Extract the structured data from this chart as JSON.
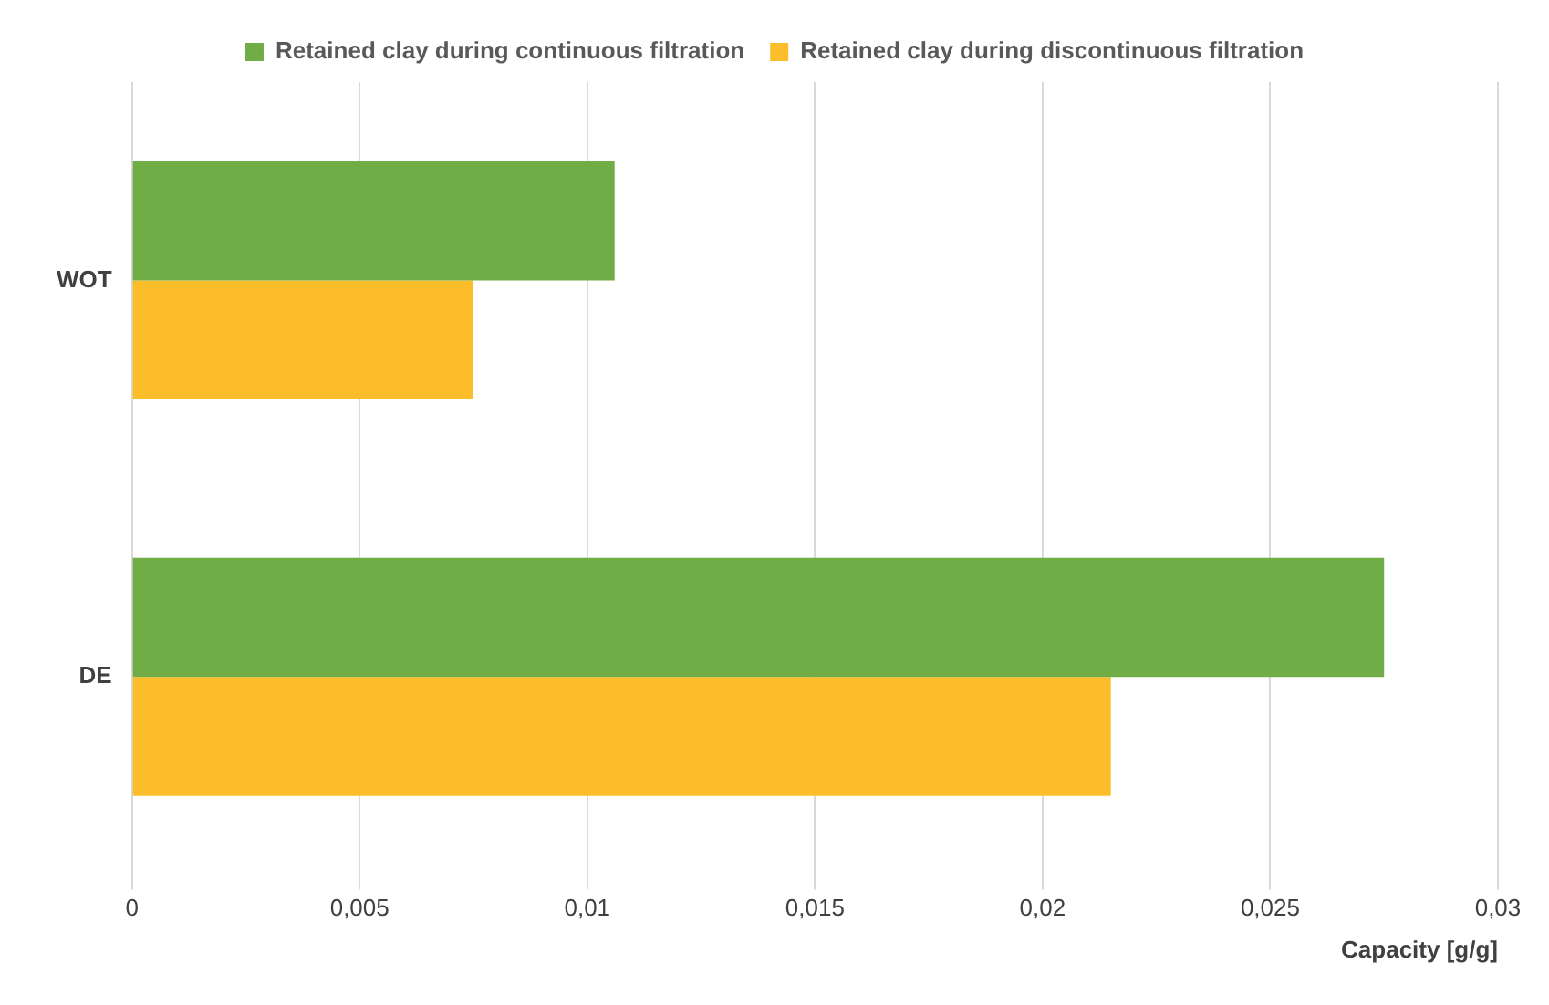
{
  "chart_data": {
    "type": "bar",
    "orientation": "horizontal",
    "categories": [
      "WOT",
      "DE"
    ],
    "series": [
      {
        "name": "Retained clay during continuous filtration",
        "color": "#70ad47",
        "values": [
          0.0106,
          0.0275
        ]
      },
      {
        "name": "Retained clay during discontinuous filtration",
        "color": "#fbbd2a",
        "values": [
          0.0075,
          0.0215
        ]
      }
    ],
    "xlabel": "Capacity [g/g]",
    "xlim": [
      0,
      0.03
    ],
    "xticks": [
      0,
      {
        "value": 0.005,
        "label": "0,005"
      },
      {
        "value": 0.01,
        "label": "0,01"
      },
      {
        "value": 0.015,
        "label": "0,015"
      },
      {
        "value": 0.02,
        "label": "0,02"
      },
      {
        "value": 0.025,
        "label": "0,025"
      },
      {
        "value": 0.03,
        "label": "0,03"
      }
    ],
    "grid": "x",
    "legend": "top"
  }
}
